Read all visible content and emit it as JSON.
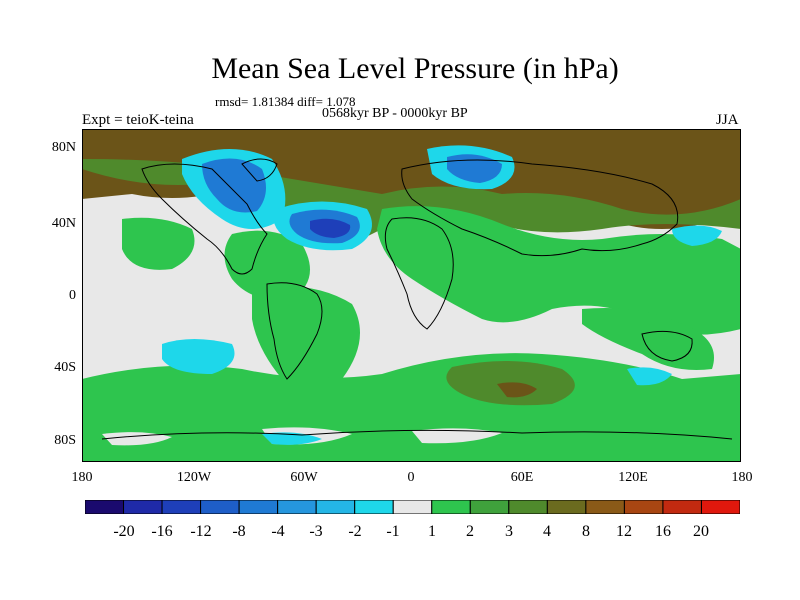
{
  "title": "Mean Sea Level Pressure (in hPa)",
  "stats_line": "rmsd= 1.81384 diff= 1.078",
  "period_line": "0568kyr BP - 0000kyr BP",
  "expt_label": "Expt = teioK-teina",
  "season_label": "JJA",
  "lat_labels": [
    "80N",
    "40N",
    "0",
    "40S",
    "80S"
  ],
  "lon_labels": [
    "180",
    "120W",
    "60W",
    "0",
    "60E",
    "120E",
    "180"
  ],
  "colorbar": {
    "labels": [
      "-20",
      "-16",
      "-12",
      "-8",
      "-4",
      "-3",
      "-2",
      "-1",
      "1",
      "2",
      "3",
      "4",
      "8",
      "12",
      "16",
      "20"
    ],
    "colors": [
      "#1a0a6e",
      "#1f2aa8",
      "#1e3fb9",
      "#1e5ec8",
      "#1f7ad4",
      "#2596de",
      "#24b6e6",
      "#1ed7ea",
      "#e8e8e8",
      "#2ec54e",
      "#3fa23c",
      "#4f8a2c",
      "#6b6b1f",
      "#8a5a18",
      "#a84612",
      "#c22a10",
      "#e0180d"
    ]
  },
  "colors": {
    "ocean_neutral": "#e8e8e8",
    "positive_light": "#2ec54e",
    "positive_mid": "#4f8a2c",
    "positive_high": "#6b5418",
    "negative_light": "#1ed7ea",
    "negative_mid": "#1f7ad4",
    "negative_deep": "#1e3fb9"
  }
}
